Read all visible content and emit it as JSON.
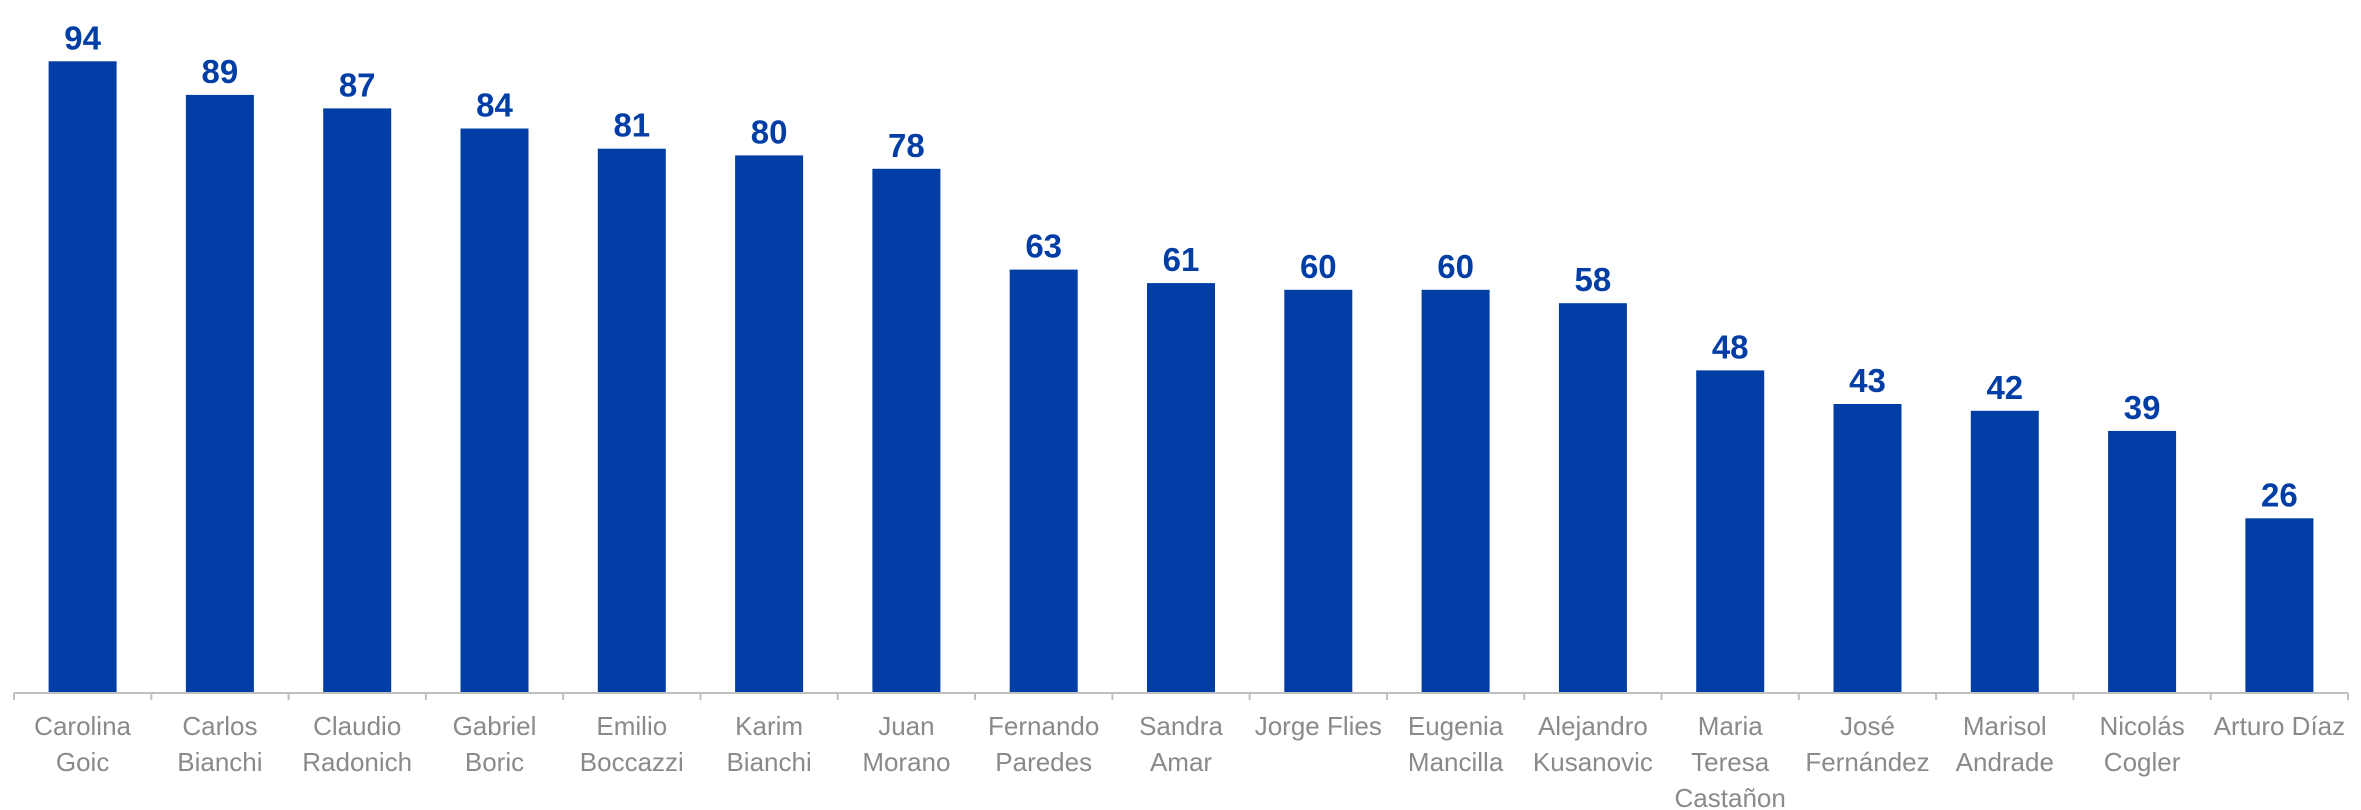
{
  "chart_data": {
    "type": "bar",
    "categories": [
      [
        "Carolina",
        "Goic"
      ],
      [
        "Carlos",
        "Bianchi"
      ],
      [
        "Claudio",
        "Radonich"
      ],
      [
        "Gabriel",
        "Boric"
      ],
      [
        "Emilio",
        "Boccazzi"
      ],
      [
        "Karim",
        "Bianchi"
      ],
      [
        "Juan",
        "Morano"
      ],
      [
        "Fernando",
        "Paredes"
      ],
      [
        "Sandra",
        "Amar"
      ],
      [
        "Jorge Flies"
      ],
      [
        "Eugenia",
        "Mancilla"
      ],
      [
        "Alejandro",
        "Kusanovic"
      ],
      [
        "Maria",
        "Teresa",
        "Castañon"
      ],
      [
        "José",
        "Fernández"
      ],
      [
        "Marisol",
        "Andrade"
      ],
      [
        "Nicolás",
        "Cogler"
      ],
      [
        "Arturo Díaz"
      ]
    ],
    "values": [
      94,
      89,
      87,
      84,
      81,
      80,
      78,
      63,
      61,
      60,
      60,
      58,
      48,
      43,
      42,
      39,
      26
    ],
    "title": "",
    "xlabel": "",
    "ylabel": "",
    "ylim": [
      0,
      100
    ],
    "grid": false,
    "legend": "none",
    "data_labels": true,
    "bar_color": "#003DA5",
    "label_color": "#003DA5",
    "axis_color": "#BFBFBF",
    "tick_label_color": "#8A8A8A"
  }
}
